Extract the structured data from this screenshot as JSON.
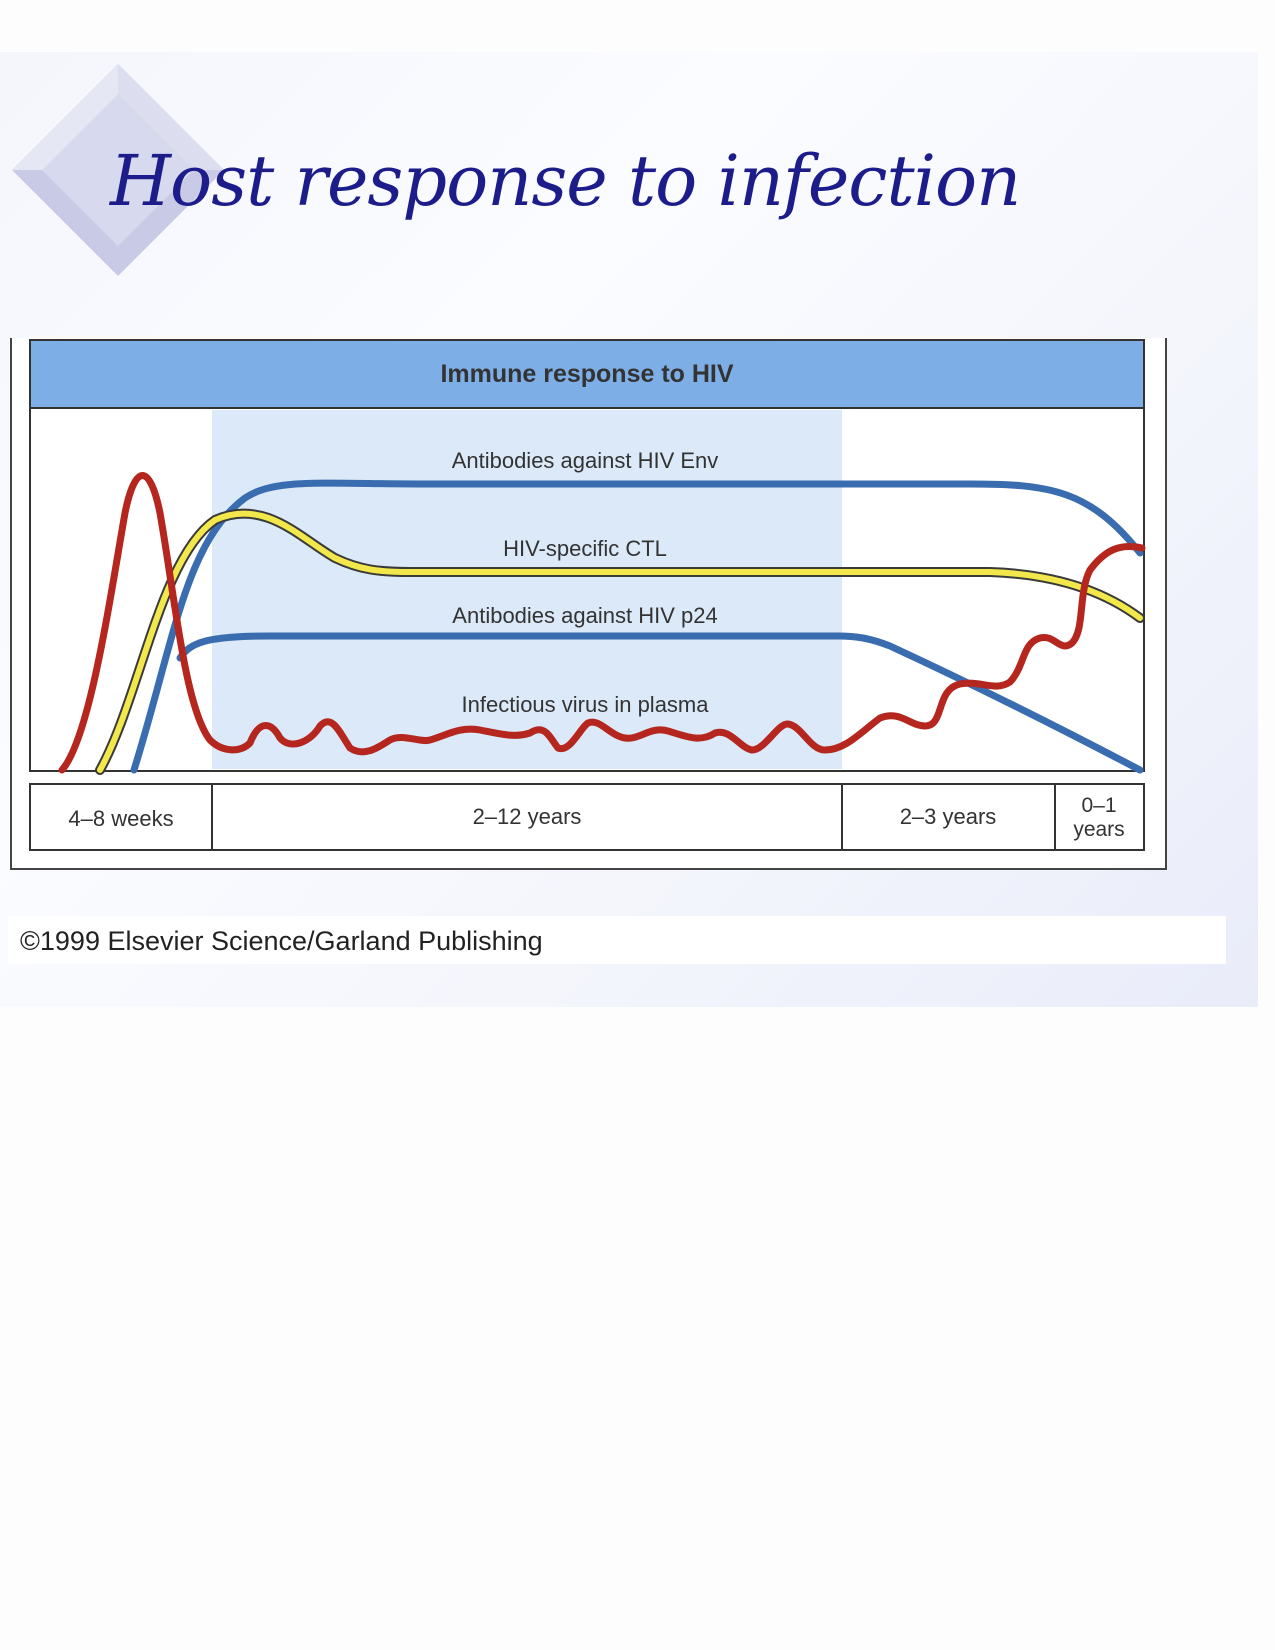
{
  "slide": {
    "title": "Host response to infection",
    "copyright": "©1999 Elsevier Science/Garland Publishing"
  },
  "figure": {
    "header": "Immune response to HIV",
    "curve_labels": {
      "env": "Antibodies against HIV Env",
      "ctl": "HIV-specific CTL",
      "p24": "Antibodies against HIV p24",
      "virus": "Infectious virus in plasma"
    },
    "phases": [
      {
        "label": "4–8 weeks"
      },
      {
        "label": "2–12 years"
      },
      {
        "label": "2–3 years"
      },
      {
        "label_line1": "0–1",
        "label_line2": "years"
      }
    ],
    "colors": {
      "header_band": "#7daee6",
      "latent_band": "#dbe9f8",
      "antibody_curve": "#3a6db0",
      "ctl_curve": "#f2e84c",
      "virus_curve": "#b5271e",
      "title": "#1c1c8a"
    }
  }
}
